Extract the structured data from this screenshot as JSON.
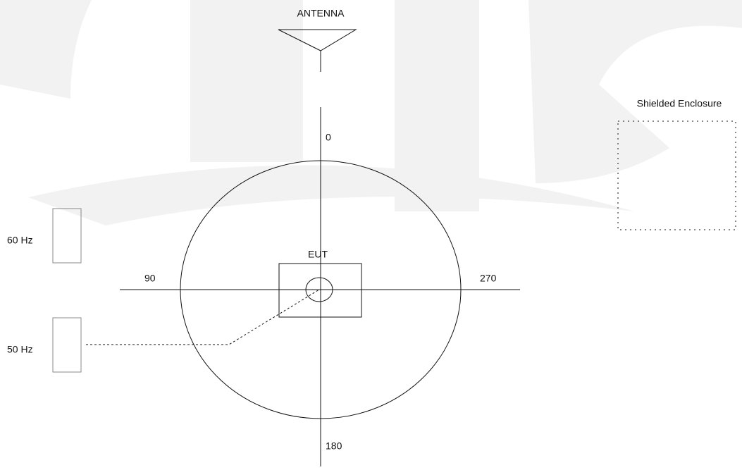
{
  "labels": {
    "antenna": "ANTENNA",
    "enclosure": "Shielded Enclosure",
    "angle_0": "0",
    "angle_90": "90",
    "angle_180": "180",
    "angle_270": "270",
    "eut": "EUT",
    "hz60": "60 Hz",
    "hz50": "50 Hz"
  }
}
